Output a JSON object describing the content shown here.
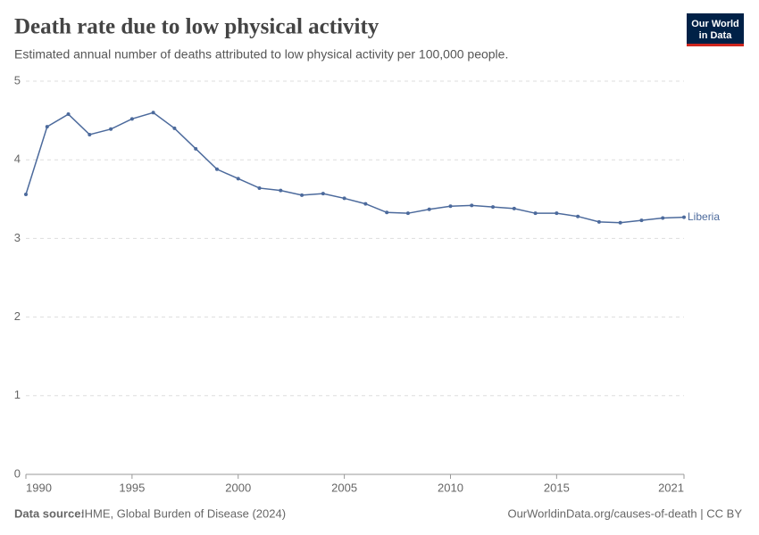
{
  "chart_data": {
    "type": "line",
    "title": "Death rate due to low physical activity",
    "subtitle": "Estimated annual number of deaths attributed to low physical activity per 100,000 people.",
    "logo": [
      "Our World",
      "in Data"
    ],
    "source_label": "Data source:",
    "source": "IHME, Global Burden of Disease (2024)",
    "footer_right": "OurWorldinData.org/causes-of-death | CC BY",
    "x": [
      1990,
      1991,
      1992,
      1993,
      1994,
      1995,
      1996,
      1997,
      1998,
      1999,
      2000,
      2001,
      2002,
      2003,
      2004,
      2005,
      2006,
      2007,
      2008,
      2009,
      2010,
      2011,
      2012,
      2013,
      2014,
      2015,
      2016,
      2017,
      2018,
      2019,
      2020,
      2021
    ],
    "series": [
      {
        "name": "Liberia",
        "color": "#4c6a9c",
        "values": [
          3.56,
          4.42,
          4.58,
          4.32,
          4.39,
          4.52,
          4.6,
          4.4,
          4.14,
          3.88,
          3.76,
          3.64,
          3.61,
          3.55,
          3.57,
          3.51,
          3.44,
          3.33,
          3.32,
          3.37,
          3.41,
          3.42,
          3.4,
          3.38,
          3.32,
          3.32,
          3.28,
          3.21,
          3.2,
          3.23,
          3.26,
          3.27
        ]
      }
    ],
    "xlim": [
      1990,
      2021
    ],
    "xticks": [
      1990,
      1995,
      2000,
      2005,
      2010,
      2015,
      2021
    ],
    "ylim": [
      0,
      5
    ],
    "yticks": [
      0,
      1,
      2,
      3,
      4,
      5
    ],
    "grid": true
  }
}
